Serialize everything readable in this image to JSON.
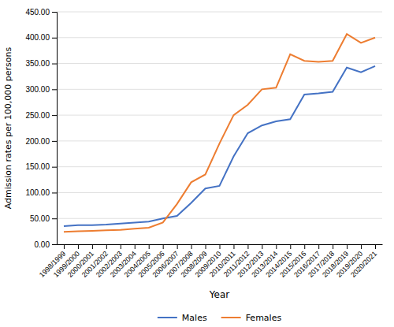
{
  "chart_data": {
    "type": "line",
    "categories": [
      "1998/1999",
      "1999/2000",
      "2000/2001",
      "2001/2002",
      "2002/2003",
      "2003/2004",
      "2004/2005",
      "2005/2006",
      "2006/2007",
      "2007/2008",
      "2008/2009",
      "2009/2010",
      "2010/2011",
      "2011/2012",
      "2012/2013",
      "2013/2014",
      "2014/2015",
      "2015/2016",
      "2016/2017",
      "2017/2018",
      "2018/2019",
      "2019/2020",
      "2020/2021"
    ],
    "series": [
      {
        "name": "Males",
        "color": "#4472C4",
        "values": [
          35,
          37,
          37,
          38,
          40,
          42,
          44,
          50,
          55,
          80,
          108,
          113,
          170,
          215,
          230,
          238,
          242,
          290,
          292,
          295,
          342,
          333,
          345
        ]
      },
      {
        "name": "Females",
        "color": "#ED7D31",
        "values": [
          24,
          25,
          26,
          27,
          28,
          30,
          32,
          42,
          78,
          120,
          135,
          195,
          250,
          270,
          300,
          303,
          368,
          355,
          353,
          355,
          407,
          390,
          400
        ]
      }
    ],
    "xlabel": "Year",
    "ylabel": "Admission rates per 100,000 persons",
    "ylim": [
      0,
      450
    ],
    "yticks": [
      {
        "value": 0,
        "label": "0.00"
      },
      {
        "value": 50,
        "label": "50.00"
      },
      {
        "value": 100,
        "label": "100.00"
      },
      {
        "value": 150,
        "label": "150.00"
      },
      {
        "value": 200,
        "label": "200.00"
      },
      {
        "value": 250,
        "label": "250.00"
      },
      {
        "value": 300,
        "label": "300.00"
      },
      {
        "value": 350,
        "label": "350.00"
      },
      {
        "value": 400,
        "label": "400.00"
      },
      {
        "value": 450,
        "label": "450.00"
      }
    ],
    "grid": true,
    "legend": "bottom"
  }
}
